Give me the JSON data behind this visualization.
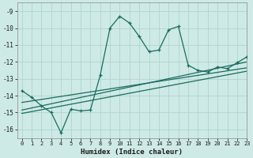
{
  "xlabel": "Humidex (Indice chaleur)",
  "background_color": "#ceeae6",
  "grid_color": "#afd4cf",
  "line_color": "#1a6b5e",
  "xlim": [
    -0.5,
    23
  ],
  "ylim": [
    -16.5,
    -8.5
  ],
  "yticks": [
    -16,
    -15,
    -14,
    -13,
    -12,
    -11,
    -10,
    -9
  ],
  "xticks": [
    0,
    1,
    2,
    3,
    4,
    5,
    6,
    7,
    8,
    9,
    10,
    11,
    12,
    13,
    14,
    15,
    16,
    17,
    18,
    19,
    20,
    21,
    22,
    23
  ],
  "line1_x": [
    0,
    1,
    2,
    3,
    4,
    5,
    6,
    7,
    8,
    9,
    10,
    11,
    12,
    13,
    14,
    15,
    16,
    17,
    18,
    19,
    20,
    21,
    22,
    23
  ],
  "line1_y": [
    -13.7,
    -14.1,
    -14.6,
    -15.0,
    -16.2,
    -14.8,
    -14.9,
    -14.85,
    -12.8,
    -10.0,
    -9.3,
    -9.7,
    -10.5,
    -11.4,
    -11.3,
    -10.1,
    -9.9,
    -12.2,
    -12.5,
    -12.6,
    -12.3,
    -12.4,
    -12.05,
    -11.7
  ],
  "line2_x": [
    0,
    23
  ],
  "line2_y": [
    -14.85,
    -12.0
  ],
  "line3_x": [
    0,
    23
  ],
  "line3_y": [
    -14.4,
    -12.35
  ],
  "line4_x": [
    0,
    23
  ],
  "line4_y": [
    -15.05,
    -12.55
  ]
}
